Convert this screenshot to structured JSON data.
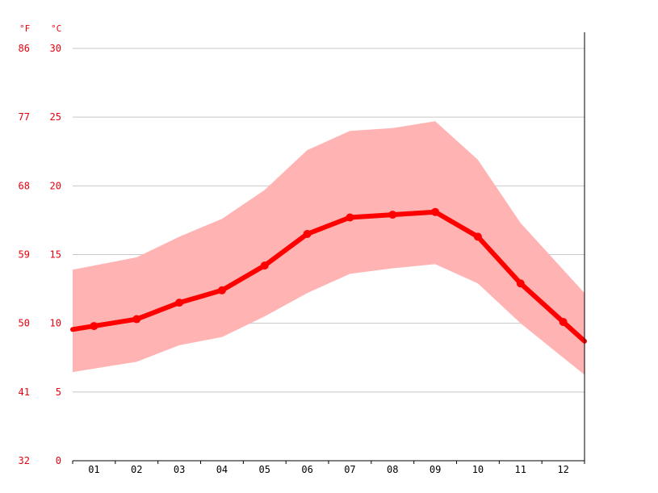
{
  "chart_data": {
    "type": "line",
    "title": "",
    "xlabel": "",
    "ylabel": "",
    "units": {
      "fahrenheit": "°F",
      "celsius": "°C"
    },
    "categories": [
      "01",
      "02",
      "03",
      "04",
      "05",
      "06",
      "07",
      "08",
      "09",
      "10",
      "11",
      "12"
    ],
    "celsius_ticks": [
      "0",
      "5",
      "10",
      "15",
      "20",
      "25",
      "30"
    ],
    "fahrenheit_ticks": [
      "32",
      "41",
      "50",
      "59",
      "68",
      "77",
      "86"
    ],
    "ylim": [
      0,
      30
    ],
    "grid": true,
    "series": [
      {
        "values": [
          9.8,
          10.3,
          11.5,
          12.4,
          14.2,
          16.5,
          17.7,
          17.9,
          18.1,
          16.3,
          12.9,
          10.1
        ]
      }
    ],
    "band": {
      "min": [
        6.7,
        7.2,
        8.4,
        9.0,
        10.5,
        12.2,
        13.6,
        14.0,
        14.3,
        12.9,
        10.0,
        7.5
      ],
      "max": [
        14.2,
        14.8,
        16.3,
        17.6,
        19.7,
        22.6,
        24.0,
        24.2,
        24.7,
        21.9,
        17.3,
        13.9
      ]
    },
    "colors": {
      "line": "#ff0000",
      "band": "#ffb3b3",
      "grid": "#c8c8c8",
      "axis_text": "#e8000f"
    }
  }
}
